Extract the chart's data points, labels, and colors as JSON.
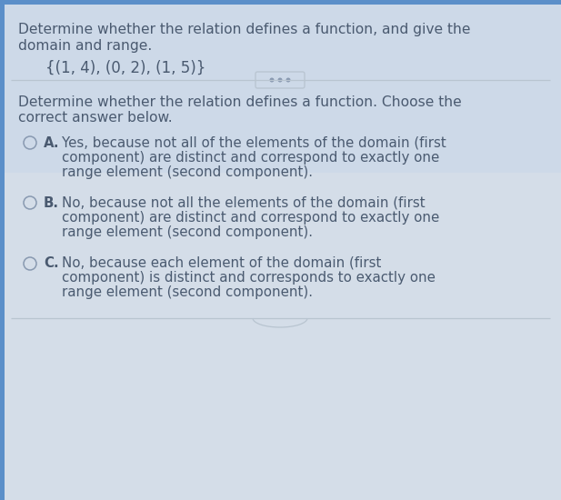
{
  "bg_top": "#cdd9e8",
  "bg_bottom": "#d4dde8",
  "left_bar_color": "#5b8fc9",
  "top_bar_color": "#5b8fc9",
  "title_text_line1": "Determine whether the relation defines a function, and give the",
  "title_text_line2": "domain and range.",
  "relation_text": "{(1, 4), (0, 2), (1, 5)}",
  "question_line1": "Determine whether the relation defines a function. Choose the",
  "question_line2": "correct answer below.",
  "option_A_label": "A.",
  "option_A_line1": "Yes, because not all of the elements of the domain (first",
  "option_A_line2": "component) are distinct and correspond to exactly one",
  "option_A_line3": "range element (second component).",
  "option_B_label": "B.",
  "option_B_line1": "No, because not all the elements of the domain (first",
  "option_B_line2": "component) are distinct and correspond to exactly one",
  "option_B_line3": "range element (second component).",
  "option_C_label": "C.",
  "option_C_line1": "No, because each element of the domain (first",
  "option_C_line2": "component) is distinct and corresponds to exactly one",
  "option_C_line3": "range element (second component).",
  "text_color": "#4a5a70",
  "divider_color": "#b8c4d0",
  "circle_color": "#8899b0",
  "dots_color": "#8899b0",
  "btn_bg": "#cdd9e8",
  "font_size_title": 11.2,
  "font_size_relation": 12.0,
  "font_size_question": 11.2,
  "font_size_option": 10.8,
  "font_size_label": 10.8
}
